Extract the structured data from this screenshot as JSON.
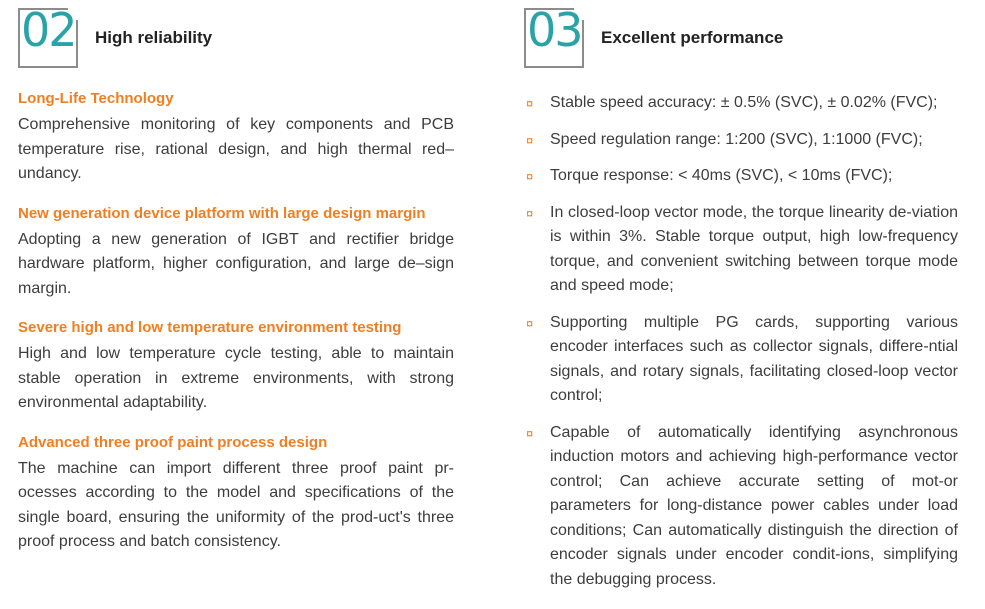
{
  "left": {
    "number": "02",
    "title": "High reliability",
    "features": [
      {
        "title": "Long-Life Technology",
        "body": "Comprehensive monitoring of key components and PCB temperature rise, rational design, and high thermal red–undancy."
      },
      {
        "title": "New generation device platform with large design margin",
        "body": "Adopting a new generation of IGBT and rectifier bridge hardware platform, higher configuration, and large de–sign margin."
      },
      {
        "title": "Severe high and low temperature environment testing",
        "body": "High and low temperature cycle testing, able to maintain stable operation in extreme environments, with strong environmental adaptability."
      },
      {
        "title": "Advanced three proof paint process design",
        "body": "The machine can import different three proof paint pr-ocesses according to the model and specifications of the single board, ensuring the uniformity of the prod-uct's three proof process and batch consistency."
      }
    ]
  },
  "right": {
    "number": "03",
    "title": "Excellent performance",
    "bullet_icon": "¤",
    "items": [
      "Stable speed accuracy: ± 0.5% (SVC), ± 0.02% (FVC);",
      "Speed regulation range: 1:200 (SVC), 1:1000 (FVC);",
      "Torque response: < 40ms (SVC), < 10ms (FVC);",
      "In closed-loop vector mode, the torque linearity de-viation is within 3%. Stable torque output, high low-frequency torque, and convenient switching between torque mode and speed mode;",
      "Supporting multiple PG cards, supporting various encoder interfaces such as collector signals, differe-ntial signals, and rotary signals, facilitating closed-loop vector control;",
      "Capable of automatically identifying asynchronous induction motors and achieving high-performance vector control; Can achieve accurate setting of mot-or parameters for long-distance power cables under load conditions; Can automatically distinguish the direction of encoder signals under encoder condit-ions, simplifying the debugging process."
    ]
  },
  "colors": {
    "accent_orange": "#ef7f22",
    "accent_teal": "#29a3a6",
    "box_border": "#8c8c8c"
  }
}
